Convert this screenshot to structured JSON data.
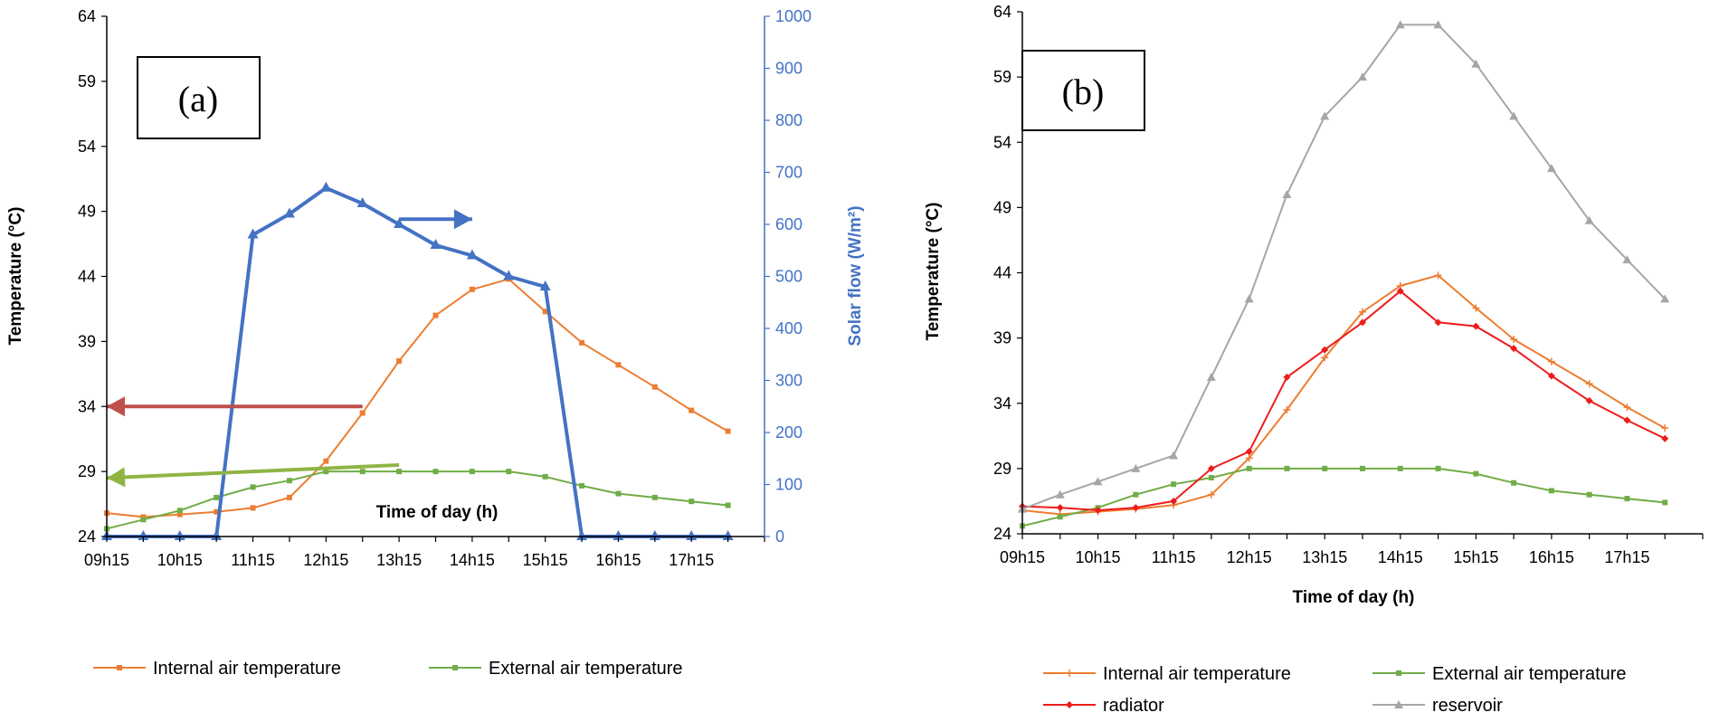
{
  "chart_data": [
    {
      "type": "line",
      "panel_label": "(a)",
      "xlabel": "Time of day (h)",
      "ylabel": "Temperature (°C)",
      "y2label": "Solar flow",
      "y2label_unit": "(W/m²)",
      "ylim": [
        24,
        64
      ],
      "yticks": [
        "24",
        "29",
        "34",
        "39",
        "44",
        "49",
        "54",
        "59",
        "64"
      ],
      "y2lim": [
        0,
        1000
      ],
      "y2ticks": [
        "0",
        "100",
        "200",
        "300",
        "400",
        "500",
        "600",
        "700",
        "800",
        "900",
        "1000"
      ],
      "xlim": [
        9.25,
        18.25
      ],
      "xticks": [
        {
          "value": 9.25,
          "label": "09h15"
        },
        {
          "value": 10.25,
          "label": "10h15"
        },
        {
          "value": 11.25,
          "label": "11h15"
        },
        {
          "value": 12.25,
          "label": "12h15"
        },
        {
          "value": 13.25,
          "label": "13h15"
        },
        {
          "value": 14.25,
          "label": "14h15"
        },
        {
          "value": 15.25,
          "label": "15h15"
        },
        {
          "value": 16.25,
          "label": "16h15"
        },
        {
          "value": 17.25,
          "label": "17h15"
        }
      ],
      "series": [
        {
          "name": "Internal air temperature",
          "axis": "left",
          "color": "#ed7d31",
          "marker": "square",
          "x": [
            9.25,
            9.75,
            10.25,
            10.75,
            11.25,
            11.75,
            12.25,
            12.75,
            13.25,
            13.75,
            14.25,
            14.75,
            15.25,
            15.75,
            16.25,
            16.75,
            17.25,
            17.75
          ],
          "y": [
            25.8,
            25.5,
            25.7,
            25.9,
            26.2,
            27.0,
            29.8,
            33.5,
            37.5,
            41.0,
            43.0,
            43.8,
            41.3,
            38.9,
            37.2,
            35.5,
            33.7,
            32.1
          ]
        },
        {
          "name": "External  air temperature",
          "axis": "left",
          "color": "#70ad47",
          "marker": "square",
          "x": [
            9.25,
            9.75,
            10.25,
            10.75,
            11.25,
            11.75,
            12.25,
            12.75,
            13.25,
            13.75,
            14.25,
            14.75,
            15.25,
            15.75,
            16.25,
            16.75,
            17.25,
            17.75
          ],
          "y": [
            24.6,
            25.3,
            26.0,
            27.0,
            27.8,
            28.3,
            29.0,
            29.0,
            29.0,
            29.0,
            29.0,
            29.0,
            28.6,
            27.9,
            27.3,
            27.0,
            26.7,
            26.4
          ]
        },
        {
          "name": "Solar flow",
          "axis": "right",
          "color": "#4472c4",
          "marker": "triangle",
          "show_in_legend": false,
          "x": [
            9.25,
            9.75,
            10.25,
            10.75,
            11.25,
            11.75,
            12.25,
            12.75,
            13.25,
            13.75,
            14.25,
            14.75,
            15.25,
            15.75,
            16.25,
            16.75,
            17.25,
            17.75
          ],
          "y": [
            0,
            0,
            0,
            0,
            580,
            620,
            670,
            640,
            600,
            560,
            540,
            500,
            480,
            0,
            0,
            0,
            0,
            0
          ]
        }
      ],
      "annotations": [
        {
          "type": "arrow",
          "color": "#c0504d",
          "from": {
            "x": 12.75,
            "y": 34
          },
          "to": {
            "x": 9.25,
            "y": 34
          },
          "meaning": "left-axis"
        },
        {
          "type": "arrow",
          "color": "#8fb444",
          "from": {
            "x": 13.25,
            "y": 29.5
          },
          "to": {
            "x": 9.25,
            "y": 28.5
          },
          "meaning": "left-axis"
        },
        {
          "type": "arrow",
          "color": "#4472c4",
          "from": {
            "x": 13.25,
            "y": 48.4
          },
          "to": {
            "x": 14.25,
            "y": 48.4
          },
          "meaning": "right-axis"
        }
      ]
    },
    {
      "type": "line",
      "panel_label": "(b)",
      "xlabel": "Time of day (h)",
      "ylabel": "Temperature (°C)",
      "ylim": [
        24,
        64
      ],
      "yticks": [
        "24",
        "29",
        "34",
        "39",
        "44",
        "49",
        "54",
        "59",
        "64"
      ],
      "xlim": [
        9.25,
        18.25
      ],
      "xticks": [
        {
          "value": 9.25,
          "label": "09h15"
        },
        {
          "value": 10.25,
          "label": "10h15"
        },
        {
          "value": 11.25,
          "label": "11h15"
        },
        {
          "value": 12.25,
          "label": "12h15"
        },
        {
          "value": 13.25,
          "label": "13h15"
        },
        {
          "value": 14.25,
          "label": "14h15"
        },
        {
          "value": 15.25,
          "label": "15h15"
        },
        {
          "value": 16.25,
          "label": "16h15"
        },
        {
          "value": 17.25,
          "label": "17h15"
        }
      ],
      "series": [
        {
          "name": "Internal air temperature",
          "color": "#ed7d31",
          "marker": "cross",
          "x": [
            9.25,
            9.75,
            10.25,
            10.75,
            11.25,
            11.75,
            12.25,
            12.75,
            13.25,
            13.75,
            14.25,
            14.75,
            15.25,
            15.75,
            16.25,
            16.75,
            17.25,
            17.75
          ],
          "y": [
            25.8,
            25.5,
            25.7,
            25.9,
            26.2,
            27.0,
            29.8,
            33.5,
            37.5,
            41.0,
            43.0,
            43.8,
            41.3,
            38.9,
            37.2,
            35.5,
            33.7,
            32.1
          ]
        },
        {
          "name": "External  air temperature",
          "color": "#70ad47",
          "marker": "square",
          "x": [
            9.25,
            9.75,
            10.25,
            10.75,
            11.25,
            11.75,
            12.25,
            12.75,
            13.25,
            13.75,
            14.25,
            14.75,
            15.25,
            15.75,
            16.25,
            16.75,
            17.25,
            17.75
          ],
          "y": [
            24.6,
            25.3,
            26.0,
            27.0,
            27.8,
            28.3,
            29.0,
            29.0,
            29.0,
            29.0,
            29.0,
            29.0,
            28.6,
            27.9,
            27.3,
            27.0,
            26.7,
            26.4
          ]
        },
        {
          "name": "radiator",
          "color": "#ee1c1c",
          "marker": "diamond",
          "x": [
            9.25,
            9.75,
            10.25,
            10.75,
            11.25,
            11.75,
            12.25,
            12.75,
            13.25,
            13.75,
            14.25,
            14.75,
            15.25,
            15.75,
            16.25,
            16.75,
            17.25,
            17.75
          ],
          "y": [
            26.1,
            26.0,
            25.8,
            26.0,
            26.5,
            29.0,
            30.3,
            36.0,
            38.1,
            40.2,
            42.6,
            40.2,
            39.9,
            38.2,
            36.1,
            34.2,
            32.7,
            31.3
          ]
        },
        {
          "name": "reservoir",
          "color": "#a6a6a6",
          "marker": "triangle",
          "x": [
            9.25,
            9.75,
            10.25,
            10.75,
            11.25,
            11.75,
            12.25,
            12.75,
            13.25,
            13.75,
            14.25,
            14.75,
            15.25,
            15.75,
            16.25,
            16.75,
            17.25,
            17.75
          ],
          "y": [
            25.9,
            27.0,
            28.0,
            29.0,
            30.0,
            36.0,
            42.0,
            50.0,
            56.0,
            59.0,
            63.0,
            63.0,
            60.0,
            56.0,
            52.0,
            48.0,
            45.0,
            42.0
          ]
        }
      ]
    }
  ]
}
